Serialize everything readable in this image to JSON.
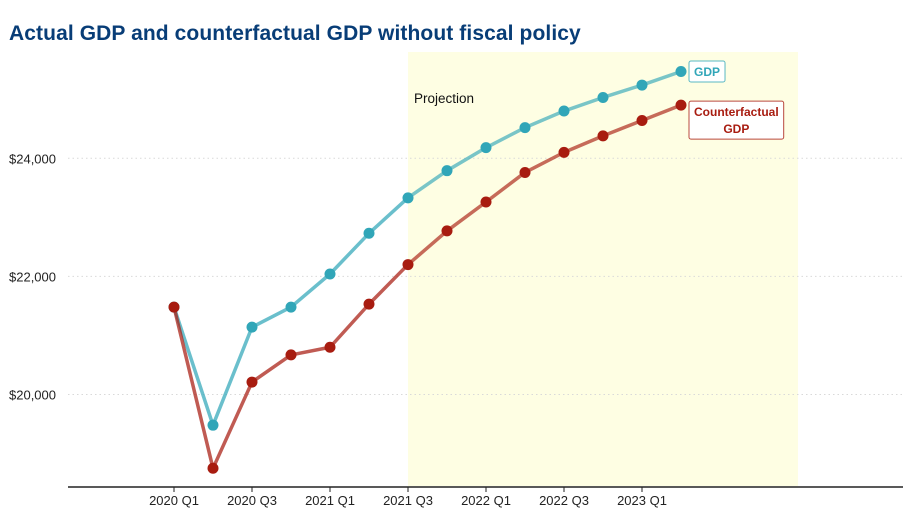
{
  "chart_data": {
    "type": "line",
    "title": "Actual GDP and counterfactual GDP without fiscal policy",
    "xlabel": "",
    "ylabel": "",
    "categories": [
      "2020 Q1",
      "2020 Q2",
      "2020 Q3",
      "2020 Q4",
      "2021 Q1",
      "2021 Q2",
      "2021 Q3",
      "2021 Q4",
      "2022 Q1",
      "2022 Q2",
      "2022 Q3",
      "2022 Q4",
      "2023 Q1",
      "2023 Q2"
    ],
    "x_tick_labels": [
      "2020 Q1",
      "2020 Q3",
      "2021 Q1",
      "2021 Q3",
      "2022 Q1",
      "2022 Q3",
      "2023 Q1"
    ],
    "y_ticks": [
      20000,
      22000,
      24000
    ],
    "y_tick_labels": [
      "$20,000",
      "$22,000",
      "$24,000"
    ],
    "ylim": [
      18450,
      25800
    ],
    "grid": "horizontal dotted",
    "projection": {
      "label": "Projection",
      "start": "2021 Q3",
      "end": "2024 Q1",
      "color": "#fefee3"
    },
    "series": [
      {
        "name": "GDP",
        "label_lines": [
          "GDP"
        ],
        "color": "#31a6b8",
        "values": [
          21480,
          19480,
          21140,
          21480,
          22040,
          22730,
          23330,
          23790,
          24180,
          24520,
          24800,
          25030,
          25240,
          25470
        ]
      },
      {
        "name": "Counterfactual GDP",
        "label_lines": [
          "Counterfactual",
          "GDP"
        ],
        "color": "#a81c10",
        "values": [
          21480,
          18750,
          20210,
          20670,
          20800,
          21530,
          22200,
          22770,
          23260,
          23760,
          24100,
          24380,
          24640,
          24900
        ]
      }
    ]
  }
}
